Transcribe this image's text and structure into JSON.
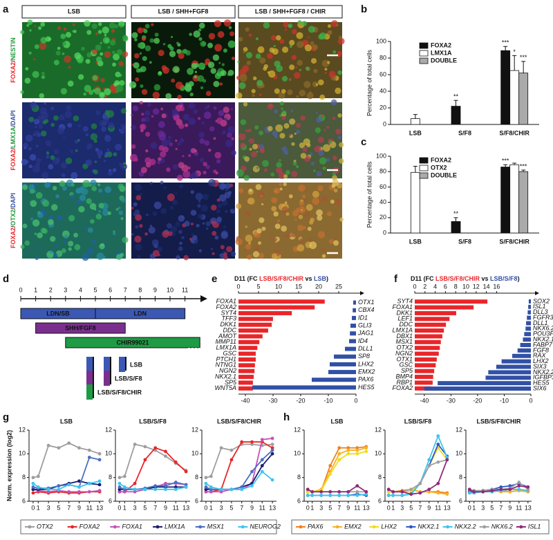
{
  "panel_a": {
    "label": "a",
    "columns": [
      "LSB",
      "LSB / SHH+FGF8",
      "LSB / SHH+FGF8 / CHIR"
    ],
    "row_labels": [
      [
        {
          "text": "FOXA2",
          "color": "#e8262a"
        },
        {
          "text": "/",
          "color": "#333333"
        },
        {
          "text": "NESTIN",
          "color": "#1f9a3c"
        }
      ],
      [
        {
          "text": "FOXA2",
          "color": "#e8262a"
        },
        {
          "text": "/",
          "color": "#333333"
        },
        {
          "text": "LMX1A",
          "color": "#1f9a3c"
        },
        {
          "text": "/",
          "color": "#333333"
        },
        {
          "text": "DAPI",
          "color": "#3150a6"
        }
      ],
      [
        {
          "text": "FOXA2",
          "color": "#e8262a"
        },
        {
          "text": "/",
          "color": "#333333"
        },
        {
          "text": "OTX2",
          "color": "#1f9a3c"
        },
        {
          "text": "/",
          "color": "#333333"
        },
        {
          "text": "DAPI",
          "color": "#3150a6"
        }
      ]
    ]
  },
  "panel_d": {
    "label": "d",
    "type": "timeline",
    "ticks": [
      0,
      1,
      2,
      3,
      4,
      5,
      6,
      7,
      8,
      9,
      10,
      11
    ],
    "lim": [
      0,
      12.5
    ],
    "bars": [
      {
        "label": "LDN/SB",
        "start": 0,
        "end": 5,
        "color": "#3b58b5"
      },
      {
        "label": "LDN",
        "start": 5,
        "end": 11,
        "color": "#3b58b5"
      },
      {
        "label": "SHH/FGF8",
        "start": 1,
        "end": 7,
        "color": "#7a2f8f"
      },
      {
        "label": "CHIR99021",
        "start": 3,
        "end": 12,
        "color": "#1f9a45"
      }
    ],
    "legend": [
      "LSB",
      "LSB/S/F8",
      "LSB/S/F8/CHIR"
    ]
  },
  "chart_data": [
    {
      "type": "bar",
      "panel": "b",
      "ylabel": "Percentage of total cells",
      "categories": [
        "LSB",
        "S/F8",
        "S/F8/CHIR"
      ],
      "ylim": [
        0,
        100
      ],
      "yticks": [
        0,
        20,
        40,
        60,
        80,
        100
      ],
      "series": [
        {
          "name": "FOXA2",
          "color": "#111111",
          "values": [
            0,
            22,
            89
          ],
          "errors": [
            null,
            7,
            5
          ],
          "sig": [
            null,
            "**",
            "***"
          ]
        },
        {
          "name": "LMX1A",
          "color": "#ffffff",
          "values": [
            7,
            0,
            65
          ],
          "errors": [
            5,
            null,
            18
          ],
          "sig": [
            null,
            null,
            "*"
          ]
        },
        {
          "name": "DOUBLE",
          "color": "#aaaaaa",
          "values": [
            0,
            0,
            62
          ],
          "errors": [
            null,
            null,
            14
          ],
          "sig": [
            null,
            null,
            "***"
          ]
        }
      ]
    },
    {
      "type": "bar",
      "panel": "c",
      "ylabel": "Percentage of total cells",
      "categories": [
        "LSB",
        "S/F8",
        "S/F8/CHIR"
      ],
      "ylim": [
        0,
        100
      ],
      "yticks": [
        0,
        20,
        40,
        60,
        80,
        100
      ],
      "series": [
        {
          "name": "FOXA2",
          "color": "#111111",
          "values": [
            0,
            15,
            86
          ],
          "errors": [
            null,
            5,
            3
          ],
          "sig": [
            null,
            "**",
            "***"
          ]
        },
        {
          "name": "OTX2",
          "color": "#ffffff",
          "values": [
            79,
            0,
            89
          ],
          "errors": [
            8,
            null,
            2
          ],
          "sig": [
            null,
            null,
            null
          ]
        },
        {
          "name": "DOUBLE",
          "color": "#aaaaaa",
          "values": [
            0,
            0,
            80
          ],
          "errors": [
            null,
            null,
            2
          ],
          "sig": [
            null,
            null,
            "***"
          ]
        }
      ]
    },
    {
      "type": "hbar",
      "panel": "e",
      "title": [
        {
          "text": "D11 (FC ",
          "color": "#111111"
        },
        {
          "text": "LSB/S/F8/CHIR",
          "color": "#e8262a"
        },
        {
          "text": " vs ",
          "color": "#111111"
        },
        {
          "text": "LSB",
          "color": "#3150a6"
        },
        {
          "text": ")",
          "color": "#111111"
        }
      ],
      "xlim": [
        -42.5,
        0
      ],
      "xticks": [
        -40,
        -30,
        -20,
        -10,
        0
      ],
      "x2lim": [
        0,
        29.3
      ],
      "x2ticks": [
        0,
        5,
        10,
        15,
        20,
        25
      ],
      "series": [
        {
          "color": "#e8262a",
          "axis": "x2",
          "categories": [
            "FOXA1",
            "FOXA2",
            "SYT4",
            "TFF3",
            "DKK1",
            "DDC",
            "AMOT",
            "MMP11",
            "LMX1A",
            "GSC",
            "PTCH1",
            "NTNG1",
            "NGN2",
            "NKX2.1",
            "SP5",
            "WNT5A"
          ],
          "values": [
            21.5,
            19,
            13.3,
            8.6,
            8.3,
            7.4,
            6,
            5.2,
            4.7,
            4.3,
            4.3,
            4.1,
            4,
            3.8,
            3.6,
            3.6
          ]
        },
        {
          "color": "#3150a6",
          "categories": [
            "OTX1",
            "CBX4",
            "ID1",
            "GLI3",
            "JAG1",
            "ID4",
            "DLL1",
            "SP8",
            "LHX2",
            "EMX2",
            "PAX6",
            "HES5"
          ],
          "values": [
            -1,
            -1.2,
            -1.5,
            -2,
            -2.2,
            -2.5,
            -4,
            -8,
            -9.5,
            -10,
            -16,
            -37.5
          ]
        }
      ]
    },
    {
      "type": "hbar",
      "panel": "f",
      "title": [
        {
          "text": "D11 (FC ",
          "color": "#111111"
        },
        {
          "text": "LSB/S/F8/CHIR",
          "color": "#e8262a"
        },
        {
          "text": " vs ",
          "color": "#111111"
        },
        {
          "text": "LSB/S/F8",
          "color": "#3150a6"
        },
        {
          "text": ")",
          "color": "#111111"
        }
      ],
      "xlim": [
        -43.6,
        0
      ],
      "xticks": [
        -40,
        -30,
        -20,
        -10,
        0
      ],
      "x2lim": [
        0,
        22.7
      ],
      "x2ticks": [
        0,
        2,
        4,
        6,
        8,
        10,
        12,
        14,
        16
      ],
      "series": [
        {
          "color": "#e8262a",
          "axis": "x2",
          "categories": [
            "SYT4",
            "FOXA1",
            "DKK1",
            "LEF1",
            "DDC",
            "LMX1A",
            "DBX1",
            "MSX1",
            "OTX2",
            "NGN2",
            "OTX1",
            "GSC",
            "SP5",
            "BMP4",
            "RBP1",
            "FOXA2"
          ],
          "values": [
            14.2,
            11.5,
            8.1,
            6.8,
            6.1,
            5.7,
            5.4,
            5.1,
            4.9,
            4.7,
            4.3,
            4.1,
            3.8,
            3.6,
            3.5,
            3.2
          ]
        },
        {
          "color": "#3150a6",
          "categories": [
            "SOX2",
            "ISL1",
            "DLL3",
            "FGFR3",
            "DLL1",
            "NKX6.2",
            "POU3F1",
            "NKX2.1",
            "FABP7",
            "FGF8",
            "RAX",
            "LHX2",
            "SIX3",
            "NKX2.2",
            "IGFBP3",
            "HES5",
            "SIX6"
          ],
          "values": [
            -0.8,
            -1,
            -1.2,
            -1.5,
            -1.8,
            -2,
            -2.5,
            -3,
            -4,
            -5,
            -7,
            -11,
            -13,
            -16,
            -17,
            -35,
            -40
          ]
        }
      ]
    },
    {
      "type": "line",
      "panel": "g",
      "ylabel": "Norm. expression (log2)",
      "x": [
        0,
        1,
        3,
        5,
        7,
        9,
        11,
        13
      ],
      "xlim": [
        -0.8,
        13.8
      ],
      "xticks": [
        0,
        1,
        3,
        5,
        7,
        9,
        11,
        13
      ],
      "ylim": [
        6,
        12
      ],
      "yticks": [
        6,
        8,
        10,
        12
      ],
      "series": [
        {
          "name": "OTX2",
          "color": "#9e9e9e"
        },
        {
          "name": "FOXA2",
          "color": "#e8262a"
        },
        {
          "name": "FOXA1",
          "color": "#c452b8"
        },
        {
          "name": "LMX1A",
          "color": "#1d1f6b"
        },
        {
          "name": "MSX1",
          "color": "#4a6fc4"
        },
        {
          "name": "NEUROG2",
          "color": "#3fc3ef"
        }
      ],
      "subplots": [
        {
          "title": "LSB",
          "values": [
            [
              8,
              8.1,
              10.7,
              10.5,
              10.9,
              10.5,
              10.3,
              10
            ],
            [
              6.7,
              6.8,
              6.7,
              6.8,
              6.7,
              6.7,
              6.8,
              6.8
            ],
            [
              7,
              6.9,
              6.8,
              6.9,
              6.8,
              6.8,
              6.8,
              6.9
            ],
            [
              7,
              7,
              7,
              7.3,
              7.5,
              7.7,
              7.5,
              7.4
            ],
            [
              7.2,
              7.1,
              7.1,
              7.3,
              7.4,
              7.2,
              9.7,
              9.5
            ],
            [
              7.5,
              7.2,
              7,
              7,
              7.4,
              7.2,
              7.5,
              7.7
            ]
          ]
        },
        {
          "title": "LSB/S/F8",
          "values": [
            [
              8,
              8.1,
              10.8,
              10.6,
              10.3,
              9.8,
              9.2,
              8.6
            ],
            [
              6.8,
              6.8,
              7.5,
              9.5,
              10.5,
              10.2,
              9.3,
              8.5
            ],
            [
              6.8,
              6.8,
              6.8,
              7,
              7.2,
              7.5,
              7.5,
              7.4
            ],
            [
              7,
              7,
              7,
              7,
              7.2,
              7.2,
              7.2,
              7.2
            ],
            [
              7.2,
              7,
              7,
              7.1,
              7.3,
              7.3,
              7.6,
              7.4
            ],
            [
              7.5,
              7.2,
              7,
              7,
              7,
              7,
              7,
              7.2
            ]
          ]
        },
        {
          "title": "LSB/S/F8/CHIR",
          "values": [
            [
              8,
              8.1,
              10.5,
              10.3,
              10.8,
              10.8,
              10.7,
              10.8
            ],
            [
              6.8,
              6.8,
              7,
              9.5,
              11,
              11,
              11,
              10.5
            ],
            [
              6.8,
              6.8,
              6.8,
              7,
              7,
              7.5,
              11.2,
              11.3
            ],
            [
              7,
              7,
              7,
              7,
              7.2,
              7.5,
              9,
              10
            ],
            [
              7.2,
              7,
              7,
              7,
              7.2,
              8.5,
              9.5,
              10.3
            ],
            [
              7.5,
              7.2,
              7,
              7,
              7,
              7.3,
              8.5,
              7.8
            ]
          ]
        }
      ]
    },
    {
      "type": "line",
      "panel": "h",
      "x": [
        0,
        1,
        3,
        5,
        7,
        9,
        11,
        13
      ],
      "xlim": [
        -0.8,
        13.8
      ],
      "xticks": [
        0,
        1,
        3,
        5,
        7,
        9,
        11,
        13
      ],
      "ylim": [
        6,
        12
      ],
      "yticks": [
        6,
        8,
        10,
        12
      ],
      "series": [
        {
          "name": "PAX6",
          "color": "#f07f1f"
        },
        {
          "name": "EMX2",
          "color": "#f5b323"
        },
        {
          "name": "LHX2",
          "color": "#eedd1d"
        },
        {
          "name": "NKX2.1",
          "color": "#2e59c6"
        },
        {
          "name": "NKX2.2",
          "color": "#41c3f0"
        },
        {
          "name": "NKX6.2",
          "color": "#a0a0a0"
        },
        {
          "name": "ISL1",
          "color": "#8e2a7a"
        }
      ],
      "subplots": [
        {
          "title": "LSB",
          "values": [
            [
              6.8,
              6.8,
              6.9,
              9,
              10.5,
              10.5,
              10.5,
              10.6
            ],
            [
              6.8,
              6.8,
              7,
              8.5,
              10,
              10.3,
              10.3,
              10.5
            ],
            [
              6.8,
              6.8,
              6.9,
              8.3,
              9.5,
              10,
              10,
              10.2
            ],
            [
              6.5,
              6.5,
              6.5,
              6.5,
              6.5,
              6.5,
              6.6,
              6.5
            ],
            [
              6.5,
              6.5,
              6.5,
              6.5,
              6.5,
              6.5,
              6.5,
              6.6
            ],
            [
              7,
              6.8,
              6.8,
              6.8,
              6.8,
              6.8,
              6.8,
              6.8
            ],
            [
              7,
              6.8,
              6.8,
              6.8,
              6.8,
              6.8,
              7.3,
              6.8
            ]
          ]
        },
        {
          "title": "LSB/S/F8",
          "values": [
            [
              6.8,
              6.8,
              6.9,
              7,
              6.8,
              6.8,
              6.8,
              6.7
            ],
            [
              6.8,
              6.8,
              6.8,
              7,
              6.8,
              6.8,
              6.7,
              6.6
            ],
            [
              6.8,
              6.8,
              6.8,
              6.8,
              7.5,
              9,
              10.5,
              9.5
            ],
            [
              6.5,
              6.5,
              6.5,
              6.6,
              7.5,
              9,
              10.8,
              9.8
            ],
            [
              6.5,
              6.5,
              6.5,
              6.6,
              7.5,
              9.5,
              11.5,
              9.7
            ],
            [
              7,
              6.8,
              6.8,
              7,
              7.5,
              9,
              9.3,
              9.5
            ],
            [
              7,
              6.8,
              6.8,
              6.6,
              6.7,
              7,
              7.5,
              9.5
            ]
          ]
        },
        {
          "title": "LSB/S/F8/CHIR",
          "values": [
            [
              6.8,
              6.8,
              6.9,
              7,
              6.9,
              6.8,
              6.9,
              6.8
            ],
            [
              6.8,
              6.8,
              6.8,
              6.9,
              6.8,
              6.8,
              6.9,
              6.8
            ],
            [
              6.8,
              6.8,
              6.8,
              6.8,
              6.9,
              7,
              7,
              6.9
            ],
            [
              6.8,
              6.8,
              6.9,
              7,
              7.2,
              7.3,
              7.5,
              7.2
            ],
            [
              6.7,
              6.7,
              6.8,
              6.8,
              6.9,
              7,
              7,
              6.9
            ],
            [
              7,
              6.9,
              6.9,
              7,
              7,
              7.1,
              7.6,
              7
            ],
            [
              7,
              6.8,
              6.8,
              6.9,
              7,
              7,
              7.3,
              7.2
            ]
          ]
        }
      ]
    }
  ]
}
